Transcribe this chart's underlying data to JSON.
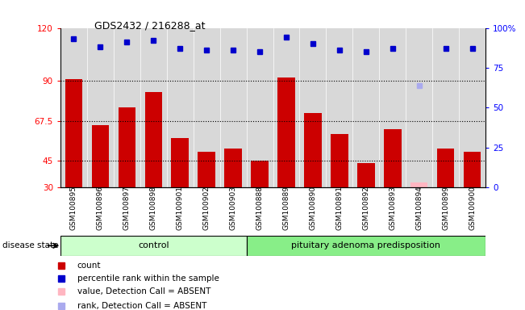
{
  "title": "GDS2432 / 216288_at",
  "samples": [
    "GSM100895",
    "GSM100896",
    "GSM100897",
    "GSM100898",
    "GSM100901",
    "GSM100902",
    "GSM100903",
    "GSM100888",
    "GSM100889",
    "GSM100890",
    "GSM100891",
    "GSM100892",
    "GSM100893",
    "GSM100894",
    "GSM100899",
    "GSM100900"
  ],
  "bar_values": [
    91,
    65,
    75,
    84,
    58,
    50,
    52,
    45,
    92,
    72,
    60,
    44,
    63,
    33,
    52,
    50
  ],
  "bar_colors": [
    "#cc0000",
    "#cc0000",
    "#cc0000",
    "#cc0000",
    "#cc0000",
    "#cc0000",
    "#cc0000",
    "#cc0000",
    "#cc0000",
    "#cc0000",
    "#cc0000",
    "#cc0000",
    "#cc0000",
    "#ffb6c1",
    "#cc0000",
    "#cc0000"
  ],
  "rank_values": [
    93,
    88,
    91,
    92,
    87,
    86,
    86,
    85,
    94,
    90,
    86,
    85,
    87,
    64,
    87,
    87
  ],
  "rank_colors": [
    "#0000cc",
    "#0000cc",
    "#0000cc",
    "#0000cc",
    "#0000cc",
    "#0000cc",
    "#0000cc",
    "#0000cc",
    "#0000cc",
    "#0000cc",
    "#0000cc",
    "#0000cc",
    "#0000cc",
    "#aaaaee",
    "#0000cc",
    "#0000cc"
  ],
  "ylim_left": [
    30,
    120
  ],
  "ylim_right": [
    0,
    100
  ],
  "yticks_left": [
    30,
    45,
    67.5,
    90,
    120
  ],
  "ytick_labels_left": [
    "30",
    "45",
    "67.5",
    "90",
    "120"
  ],
  "yticks_right": [
    0,
    25,
    50,
    75,
    100
  ],
  "ytick_labels_right": [
    "0",
    "25",
    "50",
    "75",
    "100%"
  ],
  "hlines": [
    45,
    67.5,
    90
  ],
  "control_count": 7,
  "group_labels": [
    "control",
    "pituitary adenoma predisposition"
  ],
  "disease_state_label": "disease state",
  "legend_items": [
    {
      "label": "count",
      "color": "#cc0000"
    },
    {
      "label": "percentile rank within the sample",
      "color": "#0000cc"
    },
    {
      "label": "value, Detection Call = ABSENT",
      "color": "#ffb6c1"
    },
    {
      "label": "rank, Detection Call = ABSENT",
      "color": "#aaaaee"
    }
  ],
  "plot_bg_color": "#d8d8d8",
  "group_bg_colors": [
    "#ccffcc",
    "#88ee88"
  ]
}
